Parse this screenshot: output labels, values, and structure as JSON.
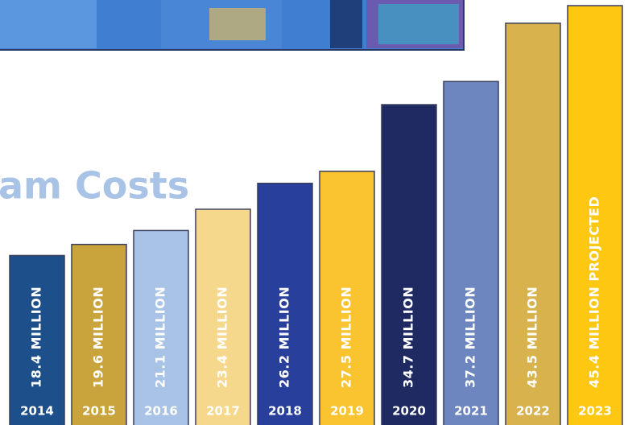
{
  "chart_data": {
    "type": "bar",
    "title": "am Costs",
    "categories": [
      "2014",
      "2015",
      "2016",
      "2017",
      "2018",
      "2019",
      "2020",
      "2021",
      "2022",
      "2023"
    ],
    "values": [
      18.4,
      19.6,
      21.1,
      23.4,
      26.2,
      27.5,
      34.7,
      37.2,
      43.5,
      45.4
    ],
    "value_labels": [
      "18.4 MILLION",
      "19.6 MILLION",
      "21.1 MILLION",
      "23.4 MILLION",
      "26.2 MILLION",
      "27.5 MILLION",
      "34.7 MILLION",
      "37.2 MILLION",
      "43.5 MILLION",
      "45.4 MILLION PROJECTED"
    ],
    "colors": [
      "#1d4f8a",
      "#c9a43c",
      "#a8c3e6",
      "#f5d88c",
      "#283f9c",
      "#f9c42f",
      "#1f2a62",
      "#6e86c0",
      "#d8b24c",
      "#fec812"
    ]
  }
}
